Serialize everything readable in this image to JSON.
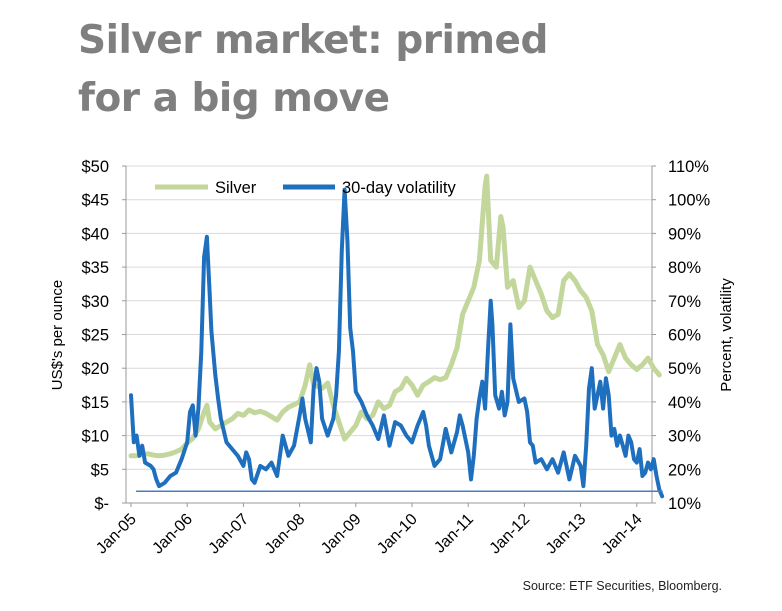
{
  "title": {
    "line1": "Silver market: primed",
    "line2": "for a big move"
  },
  "source": "Source: ETF Securities, Bloomberg.",
  "colors": {
    "silver": "#c3d69b",
    "volatility": "#1f6fbf",
    "baseline": "#4a7dbf",
    "title": "#7f7f7f"
  },
  "chart_data": {
    "type": "line",
    "ylabel": "US$'s per ounce",
    "y2label": "Percent, volatility",
    "ylim": [
      0,
      50
    ],
    "y2lim": [
      10,
      110
    ],
    "xlim": [
      2005.0,
      2014.45
    ],
    "y_ticks": [
      "$-",
      "$5",
      "$10",
      "$15",
      "$20",
      "$25",
      "$30",
      "$35",
      "$40",
      "$45",
      "$50"
    ],
    "y2_ticks": [
      "10%",
      "20%",
      "30%",
      "40%",
      "50%",
      "60%",
      "70%",
      "80%",
      "90%",
      "100%",
      "110%"
    ],
    "x_ticks": [
      "Jan-05",
      "Jan-06",
      "Jan-07",
      "Jan-08",
      "Jan-09",
      "Jan-10",
      "Jan-11",
      "Jan-12",
      "Jan-13",
      "Jan-14"
    ],
    "legend": [
      "Silver",
      "30-day volatility"
    ],
    "series": [
      {
        "name": "Silver",
        "axis": "left",
        "points": [
          [
            2005.0,
            7.0
          ],
          [
            2005.1,
            7.0
          ],
          [
            2005.2,
            7.2
          ],
          [
            2005.3,
            7.3
          ],
          [
            2005.4,
            7.1
          ],
          [
            2005.5,
            7.0
          ],
          [
            2005.6,
            7.1
          ],
          [
            2005.7,
            7.3
          ],
          [
            2005.8,
            7.6
          ],
          [
            2005.9,
            8.0
          ],
          [
            2006.0,
            8.9
          ],
          [
            2006.1,
            9.6
          ],
          [
            2006.2,
            11.0
          ],
          [
            2006.3,
            13.5
          ],
          [
            2006.35,
            14.5
          ],
          [
            2006.4,
            12.0
          ],
          [
            2006.5,
            11.0
          ],
          [
            2006.6,
            11.5
          ],
          [
            2006.7,
            12.0
          ],
          [
            2006.8,
            12.5
          ],
          [
            2006.9,
            13.3
          ],
          [
            2007.0,
            13.0
          ],
          [
            2007.1,
            13.8
          ],
          [
            2007.2,
            13.4
          ],
          [
            2007.3,
            13.6
          ],
          [
            2007.4,
            13.3
          ],
          [
            2007.5,
            12.8
          ],
          [
            2007.6,
            12.3
          ],
          [
            2007.7,
            13.5
          ],
          [
            2007.8,
            14.2
          ],
          [
            2007.9,
            14.6
          ],
          [
            2008.0,
            15.0
          ],
          [
            2008.1,
            17.5
          ],
          [
            2008.18,
            20.5
          ],
          [
            2008.25,
            17.5
          ],
          [
            2008.4,
            17.0
          ],
          [
            2008.5,
            17.8
          ],
          [
            2008.6,
            14.5
          ],
          [
            2008.7,
            12.0
          ],
          [
            2008.8,
            9.5
          ],
          [
            2008.9,
            10.5
          ],
          [
            2009.0,
            11.5
          ],
          [
            2009.1,
            13.5
          ],
          [
            2009.2,
            12.5
          ],
          [
            2009.3,
            13.0
          ],
          [
            2009.4,
            15.0
          ],
          [
            2009.5,
            14.0
          ],
          [
            2009.6,
            14.5
          ],
          [
            2009.7,
            16.5
          ],
          [
            2009.8,
            17.0
          ],
          [
            2009.9,
            18.5
          ],
          [
            2010.0,
            17.5
          ],
          [
            2010.1,
            16.0
          ],
          [
            2010.2,
            17.5
          ],
          [
            2010.3,
            18.0
          ],
          [
            2010.4,
            18.6
          ],
          [
            2010.5,
            18.3
          ],
          [
            2010.6,
            18.6
          ],
          [
            2010.7,
            20.5
          ],
          [
            2010.8,
            23.0
          ],
          [
            2010.9,
            28.0
          ],
          [
            2011.0,
            30.0
          ],
          [
            2011.1,
            32.0
          ],
          [
            2011.2,
            36.0
          ],
          [
            2011.3,
            47.0
          ],
          [
            2011.33,
            48.5
          ],
          [
            2011.4,
            36.0
          ],
          [
            2011.5,
            35.0
          ],
          [
            2011.58,
            42.5
          ],
          [
            2011.62,
            41.0
          ],
          [
            2011.7,
            32.0
          ],
          [
            2011.8,
            33.0
          ],
          [
            2011.9,
            29.0
          ],
          [
            2012.0,
            30.0
          ],
          [
            2012.1,
            35.0
          ],
          [
            2012.2,
            33.0
          ],
          [
            2012.3,
            31.0
          ],
          [
            2012.4,
            28.5
          ],
          [
            2012.5,
            27.5
          ],
          [
            2012.6,
            28.0
          ],
          [
            2012.7,
            33.0
          ],
          [
            2012.8,
            34.0
          ],
          [
            2012.9,
            33.0
          ],
          [
            2013.0,
            31.5
          ],
          [
            2013.1,
            30.5
          ],
          [
            2013.2,
            28.5
          ],
          [
            2013.3,
            23.5
          ],
          [
            2013.4,
            22.0
          ],
          [
            2013.5,
            19.5
          ],
          [
            2013.6,
            21.5
          ],
          [
            2013.7,
            23.5
          ],
          [
            2013.8,
            21.5
          ],
          [
            2013.9,
            20.5
          ],
          [
            2014.0,
            19.8
          ],
          [
            2014.1,
            20.5
          ],
          [
            2014.2,
            21.5
          ],
          [
            2014.3,
            20.0
          ],
          [
            2014.4,
            19.0
          ]
        ]
      },
      {
        "name": "30-day volatility",
        "axis": "right",
        "points": [
          [
            2005.0,
            42
          ],
          [
            2005.05,
            28
          ],
          [
            2005.1,
            30
          ],
          [
            2005.15,
            24
          ],
          [
            2005.2,
            27
          ],
          [
            2005.25,
            22
          ],
          [
            2005.35,
            21
          ],
          [
            2005.4,
            20
          ],
          [
            2005.45,
            17
          ],
          [
            2005.5,
            15
          ],
          [
            2005.6,
            16
          ],
          [
            2005.7,
            18
          ],
          [
            2005.8,
            19
          ],
          [
            2005.9,
            23
          ],
          [
            2006.0,
            28
          ],
          [
            2006.05,
            37
          ],
          [
            2006.1,
            39
          ],
          [
            2006.15,
            30
          ],
          [
            2006.2,
            38
          ],
          [
            2006.25,
            55
          ],
          [
            2006.3,
            83
          ],
          [
            2006.35,
            89
          ],
          [
            2006.4,
            72
          ],
          [
            2006.43,
            61
          ],
          [
            2006.5,
            48
          ],
          [
            2006.55,
            41
          ],
          [
            2006.6,
            35
          ],
          [
            2006.7,
            28
          ],
          [
            2006.8,
            26
          ],
          [
            2006.9,
            24
          ],
          [
            2007.0,
            21
          ],
          [
            2007.05,
            25
          ],
          [
            2007.1,
            23
          ],
          [
            2007.15,
            17
          ],
          [
            2007.2,
            16
          ],
          [
            2007.3,
            21
          ],
          [
            2007.4,
            20
          ],
          [
            2007.5,
            22
          ],
          [
            2007.6,
            18
          ],
          [
            2007.7,
            30
          ],
          [
            2007.8,
            24
          ],
          [
            2007.9,
            27
          ],
          [
            2008.0,
            36
          ],
          [
            2008.05,
            41
          ],
          [
            2008.1,
            35
          ],
          [
            2008.2,
            28
          ],
          [
            2008.25,
            44
          ],
          [
            2008.3,
            50
          ],
          [
            2008.35,
            46
          ],
          [
            2008.4,
            35
          ],
          [
            2008.5,
            30
          ],
          [
            2008.6,
            35
          ],
          [
            2008.65,
            42
          ],
          [
            2008.7,
            55
          ],
          [
            2008.75,
            85
          ],
          [
            2008.8,
            103
          ],
          [
            2008.85,
            88
          ],
          [
            2008.9,
            62
          ],
          [
            2008.95,
            55
          ],
          [
            2009.0,
            43
          ],
          [
            2009.1,
            40
          ],
          [
            2009.2,
            36
          ],
          [
            2009.3,
            33
          ],
          [
            2009.4,
            29
          ],
          [
            2009.5,
            36
          ],
          [
            2009.6,
            27
          ],
          [
            2009.7,
            34
          ],
          [
            2009.8,
            33
          ],
          [
            2009.9,
            30
          ],
          [
            2010.0,
            28
          ],
          [
            2010.1,
            33
          ],
          [
            2010.2,
            37
          ],
          [
            2010.25,
            33
          ],
          [
            2010.3,
            27
          ],
          [
            2010.4,
            21
          ],
          [
            2010.5,
            23
          ],
          [
            2010.6,
            32
          ],
          [
            2010.7,
            25
          ],
          [
            2010.8,
            31
          ],
          [
            2010.85,
            36
          ],
          [
            2010.9,
            33
          ],
          [
            2011.0,
            25
          ],
          [
            2011.05,
            17
          ],
          [
            2011.1,
            24
          ],
          [
            2011.15,
            35
          ],
          [
            2011.2,
            41
          ],
          [
            2011.25,
            46
          ],
          [
            2011.3,
            38
          ],
          [
            2011.35,
            55
          ],
          [
            2011.4,
            70
          ],
          [
            2011.43,
            63
          ],
          [
            2011.48,
            42
          ],
          [
            2011.55,
            38
          ],
          [
            2011.6,
            43
          ],
          [
            2011.65,
            36
          ],
          [
            2011.7,
            40
          ],
          [
            2011.75,
            63
          ],
          [
            2011.8,
            47
          ],
          [
            2011.9,
            40
          ],
          [
            2012.0,
            41
          ],
          [
            2012.05,
            37
          ],
          [
            2012.1,
            28
          ],
          [
            2012.15,
            27
          ],
          [
            2012.2,
            22
          ],
          [
            2012.3,
            23
          ],
          [
            2012.4,
            20
          ],
          [
            2012.5,
            23
          ],
          [
            2012.6,
            19
          ],
          [
            2012.7,
            25
          ],
          [
            2012.8,
            17
          ],
          [
            2012.9,
            24
          ],
          [
            2013.0,
            21
          ],
          [
            2013.05,
            15
          ],
          [
            2013.1,
            27
          ],
          [
            2013.15,
            44
          ],
          [
            2013.2,
            50
          ],
          [
            2013.25,
            38
          ],
          [
            2013.3,
            42
          ],
          [
            2013.35,
            46
          ],
          [
            2013.4,
            38
          ],
          [
            2013.45,
            47
          ],
          [
            2013.5,
            42
          ],
          [
            2013.55,
            30
          ],
          [
            2013.6,
            32
          ],
          [
            2013.65,
            27
          ],
          [
            2013.7,
            30
          ],
          [
            2013.75,
            27
          ],
          [
            2013.8,
            24
          ],
          [
            2013.85,
            30
          ],
          [
            2013.9,
            28
          ],
          [
            2013.95,
            23
          ],
          [
            2014.0,
            22
          ],
          [
            2014.05,
            26
          ],
          [
            2014.1,
            18
          ],
          [
            2014.15,
            19
          ],
          [
            2014.2,
            22
          ],
          [
            2014.25,
            20
          ],
          [
            2014.3,
            23
          ],
          [
            2014.35,
            18
          ],
          [
            2014.4,
            14
          ],
          [
            2014.45,
            12
          ]
        ]
      },
      {
        "name": "baseline",
        "axis": "right",
        "points": [
          [
            2005.1,
            13.5
          ],
          [
            2014.45,
            13.5
          ]
        ]
      }
    ]
  }
}
